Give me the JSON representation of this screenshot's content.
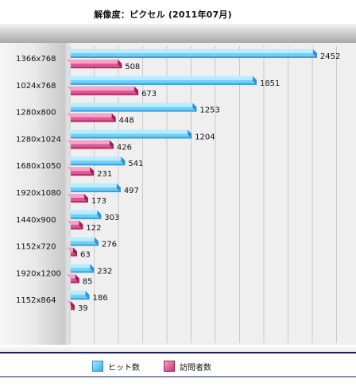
{
  "chart_data": {
    "type": "bar",
    "orientation": "horizontal",
    "style": "3d",
    "title": "解像度：ピクセル (2011年07月)",
    "categories": [
      "1366x768",
      "1024x768",
      "1280x800",
      "1280x1024",
      "1680x1050",
      "1920x1080",
      "1440x900",
      "1152x720",
      "1920x1200",
      "1152x864"
    ],
    "series": [
      {
        "name": "ヒット数",
        "color": "#4fc8f5",
        "values": [
          2452,
          1851,
          1253,
          1204,
          541,
          497,
          303,
          276,
          232,
          186
        ]
      },
      {
        "name": "訪問者数",
        "color": "#e24a8e",
        "values": [
          508,
          673,
          448,
          426,
          231,
          173,
          122,
          63,
          85,
          39
        ]
      }
    ],
    "xlim": [
      0,
      2500
    ],
    "grid": true,
    "legend_position": "bottom"
  },
  "legend": {
    "hits_label": "ヒット数",
    "visitors_label": "訪問者数"
  }
}
